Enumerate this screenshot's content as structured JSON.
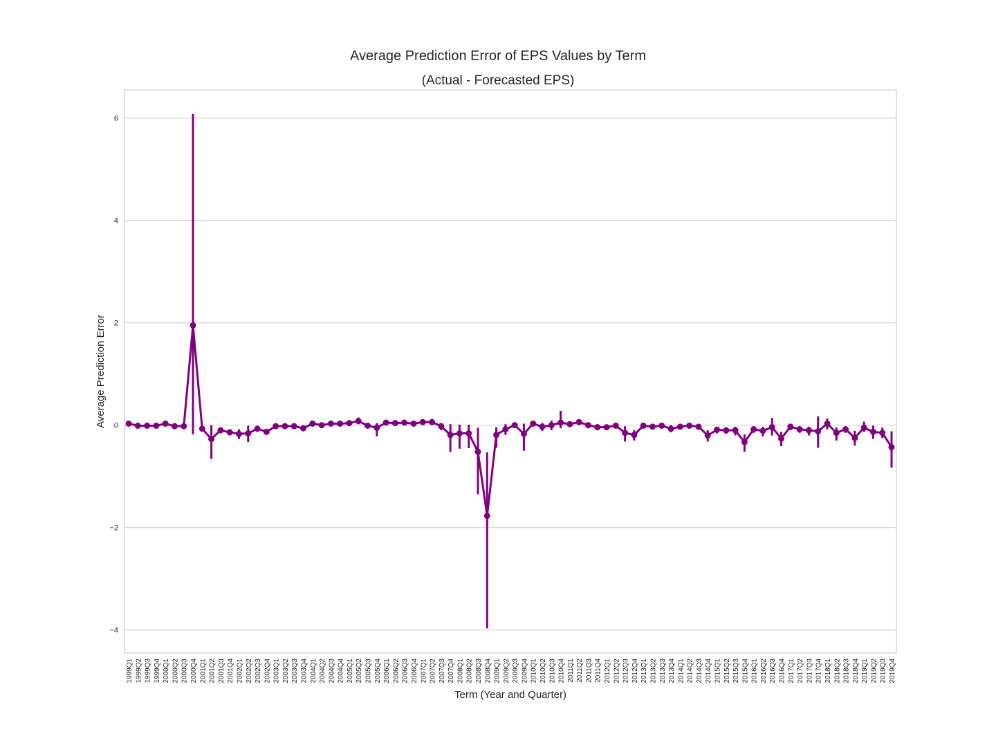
{
  "chart_data": {
    "type": "line",
    "title": "Average Prediction Error of EPS Values by Term",
    "subtitle": "(Actual - Forecasted EPS)",
    "xlabel": "Term (Year and Quarter)",
    "ylabel": "Average Prediction Error",
    "ylim": [
      -4.45,
      6.55
    ],
    "yticks": [
      -4,
      -2,
      0,
      2,
      4,
      6
    ],
    "grid": "y",
    "color": "#800080",
    "categories": [
      "1999Q1",
      "1999Q2",
      "1999Q3",
      "1999Q4",
      "2000Q1",
      "2000Q2",
      "2000Q3",
      "2000Q4",
      "2001Q1",
      "2001Q2",
      "2001Q3",
      "2001Q4",
      "2002Q1",
      "2002Q2",
      "2002Q3",
      "2002Q4",
      "2003Q1",
      "2003Q2",
      "2003Q3",
      "2003Q4",
      "2004Q1",
      "2004Q2",
      "2004Q3",
      "2004Q4",
      "2005Q1",
      "2005Q2",
      "2005Q3",
      "2005Q4",
      "2006Q1",
      "2006Q2",
      "2006Q3",
      "2006Q4",
      "2007Q1",
      "2007Q2",
      "2007Q3",
      "2007Q4",
      "2008Q1",
      "2008Q2",
      "2008Q3",
      "2008Q4",
      "2009Q1",
      "2009Q2",
      "2009Q3",
      "2009Q4",
      "2010Q1",
      "2010Q2",
      "2010Q3",
      "2010Q4",
      "2011Q1",
      "2011Q2",
      "2011Q3",
      "2011Q4",
      "2012Q1",
      "2012Q2",
      "2012Q3",
      "2012Q4",
      "2013Q1",
      "2013Q2",
      "2013Q3",
      "2013Q4",
      "2014Q1",
      "2014Q2",
      "2014Q3",
      "2014Q4",
      "2015Q1",
      "2015Q2",
      "2015Q3",
      "2015Q4",
      "2016Q1",
      "2016Q2",
      "2016Q3",
      "2016Q4",
      "2017Q1",
      "2017Q2",
      "2017Q3",
      "2017Q4",
      "2018Q1",
      "2018Q2",
      "2018Q3",
      "2018Q4",
      "2019Q1",
      "2019Q2",
      "2019Q3",
      "2019Q4"
    ],
    "series": [
      {
        "values": [
          0.03,
          -0.01,
          -0.01,
          -0.01,
          0.03,
          -0.02,
          -0.02,
          1.95,
          -0.07,
          -0.27,
          -0.1,
          -0.14,
          -0.17,
          -0.16,
          -0.07,
          -0.13,
          -0.02,
          -0.02,
          -0.02,
          -0.06,
          0.03,
          0.0,
          0.03,
          0.03,
          0.04,
          0.08,
          -0.01,
          -0.05,
          0.05,
          0.04,
          0.05,
          0.03,
          0.06,
          0.06,
          -0.02,
          -0.19,
          -0.16,
          -0.16,
          -0.52,
          -1.77,
          -0.19,
          -0.08,
          0.0,
          -0.17,
          0.03,
          -0.03,
          0.0,
          0.05,
          0.02,
          0.06,
          0.0,
          -0.04,
          -0.04,
          -0.01,
          -0.15,
          -0.19,
          -0.01,
          -0.03,
          -0.01,
          -0.07,
          -0.03,
          -0.01,
          -0.03,
          -0.2,
          -0.09,
          -0.1,
          -0.1,
          -0.33,
          -0.08,
          -0.11,
          -0.04,
          -0.26,
          -0.03,
          -0.08,
          -0.1,
          -0.12,
          0.03,
          -0.15,
          -0.08,
          -0.25,
          -0.05,
          -0.13,
          -0.15,
          -0.43
        ],
        "error_low": [
          -0.01,
          -0.03,
          -0.03,
          -0.03,
          0.0,
          -0.04,
          -0.04,
          -0.18,
          -0.12,
          -0.66,
          -0.15,
          -0.2,
          -0.27,
          -0.33,
          -0.13,
          -0.18,
          -0.06,
          -0.05,
          -0.05,
          -0.12,
          0.0,
          -0.03,
          0.0,
          0.0,
          0.0,
          0.02,
          -0.06,
          -0.22,
          0.01,
          0.0,
          0.02,
          -0.01,
          0.03,
          0.02,
          -0.1,
          -0.52,
          -0.46,
          -0.45,
          -1.35,
          -3.97,
          -0.44,
          -0.19,
          -0.05,
          -0.5,
          -0.02,
          -0.11,
          -0.1,
          -0.06,
          -0.02,
          0.02,
          -0.06,
          -0.1,
          -0.08,
          -0.05,
          -0.32,
          -0.3,
          -0.06,
          -0.07,
          -0.05,
          -0.14,
          -0.06,
          -0.05,
          -0.07,
          -0.32,
          -0.16,
          -0.17,
          -0.2,
          -0.52,
          -0.15,
          -0.22,
          -0.2,
          -0.41,
          -0.1,
          -0.15,
          -0.2,
          -0.44,
          -0.08,
          -0.3,
          -0.15,
          -0.4,
          -0.13,
          -0.27,
          -0.25,
          -0.83
        ],
        "error_high": [
          0.06,
          0.01,
          0.01,
          0.01,
          0.06,
          0.0,
          0.0,
          6.08,
          -0.01,
          0.0,
          -0.05,
          -0.08,
          -0.08,
          -0.01,
          -0.02,
          -0.08,
          0.02,
          0.01,
          0.01,
          0.0,
          0.06,
          0.03,
          0.06,
          0.06,
          0.08,
          0.15,
          0.04,
          0.04,
          0.09,
          0.08,
          0.09,
          0.07,
          0.09,
          0.1,
          0.04,
          0.02,
          0.01,
          0.01,
          -0.05,
          -0.53,
          -0.04,
          0.02,
          0.05,
          0.03,
          0.07,
          0.04,
          0.09,
          0.28,
          0.06,
          0.1,
          0.05,
          0.02,
          0.01,
          0.04,
          -0.02,
          -0.1,
          0.04,
          0.01,
          0.03,
          0.0,
          0.01,
          0.03,
          0.01,
          -0.1,
          -0.03,
          -0.04,
          -0.03,
          -0.18,
          -0.02,
          -0.03,
          0.14,
          -0.13,
          0.03,
          -0.02,
          -0.03,
          0.17,
          0.13,
          -0.04,
          -0.02,
          -0.11,
          0.07,
          -0.01,
          -0.05,
          -0.12
        ]
      }
    ]
  }
}
